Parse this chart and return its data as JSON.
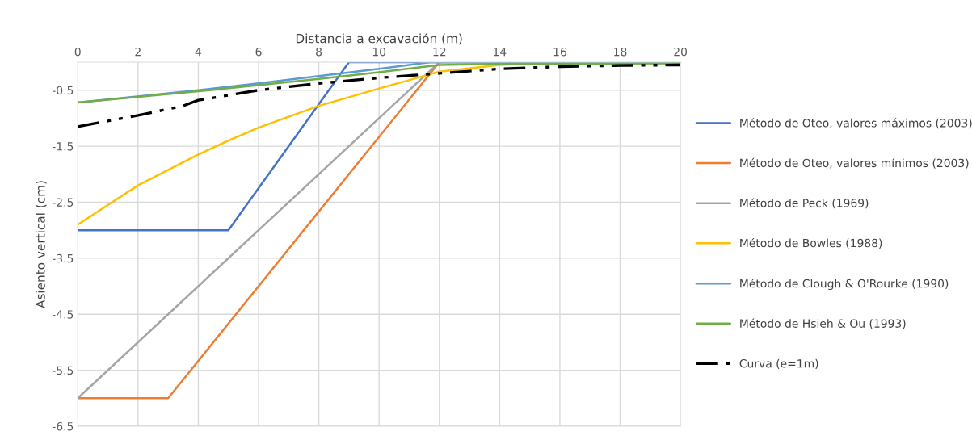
{
  "chart_data": {
    "type": "line",
    "xlabel": "Distancia a excavación (m)",
    "ylabel": "Asiento vertical (cm)",
    "xlim": [
      0,
      20
    ],
    "xticks": [
      0,
      2,
      4,
      6,
      8,
      10,
      12,
      14,
      16,
      18,
      20
    ],
    "ylim": [
      -6.5,
      0
    ],
    "yticks": [
      -0.5,
      -1.5,
      -2.5,
      -3.5,
      -4.5,
      -5.5,
      -6.5
    ],
    "grid": true,
    "legend": "right",
    "marker": "none",
    "series": [
      {
        "name": "Método de Oteo, valores máximos (2003)",
        "color": "#4472c4",
        "x": [
          0,
          5,
          9,
          20
        ],
        "values": [
          -3,
          -3,
          0,
          0
        ]
      },
      {
        "name": "Método de Oteo, valores mínimos (2003)",
        "color": "#ed7d31",
        "x": [
          0,
          3,
          12,
          20
        ],
        "values": [
          -6,
          -6,
          0,
          0
        ]
      },
      {
        "name": "Método de Peck (1969)",
        "color": "#a5a5a5",
        "x": [
          0,
          12,
          20
        ],
        "values": [
          -6,
          0,
          0
        ]
      },
      {
        "name": "Método de Bowles (1988)",
        "color": "#ffc000",
        "x": [
          0,
          2,
          4,
          5,
          6,
          8,
          10,
          12,
          14,
          16,
          20
        ],
        "values": [
          -2.9,
          -2.2,
          -1.65,
          -1.4,
          -1.17,
          -0.78,
          -0.47,
          -0.17,
          -0.05,
          0,
          0
        ]
      },
      {
        "name": "Método de Clough & O'Rourke (1990)",
        "color": "#5b9bd5",
        "x": [
          0,
          4,
          6,
          8,
          10,
          11.7,
          20
        ],
        "values": [
          -0.72,
          -0.5,
          -0.38,
          -0.25,
          -0.12,
          0,
          0
        ]
      },
      {
        "name": "Método de Hsieh & Ou (1993)",
        "color": "#70ad47",
        "x": [
          0,
          4,
          8,
          10,
          12,
          14,
          20
        ],
        "values": [
          -0.72,
          -0.52,
          -0.3,
          -0.18,
          -0.05,
          -0.03,
          -0.02
        ]
      },
      {
        "name": "Curva (e=1m)",
        "color": "#000000",
        "line_style": "dashdotdot",
        "x": [
          0,
          2,
          3.5,
          4,
          6,
          8,
          10,
          12,
          14,
          16,
          18,
          20
        ],
        "values": [
          -1.15,
          -0.95,
          -0.78,
          -0.68,
          -0.5,
          -0.38,
          -0.28,
          -0.2,
          -0.12,
          -0.08,
          -0.06,
          -0.05
        ]
      }
    ]
  }
}
